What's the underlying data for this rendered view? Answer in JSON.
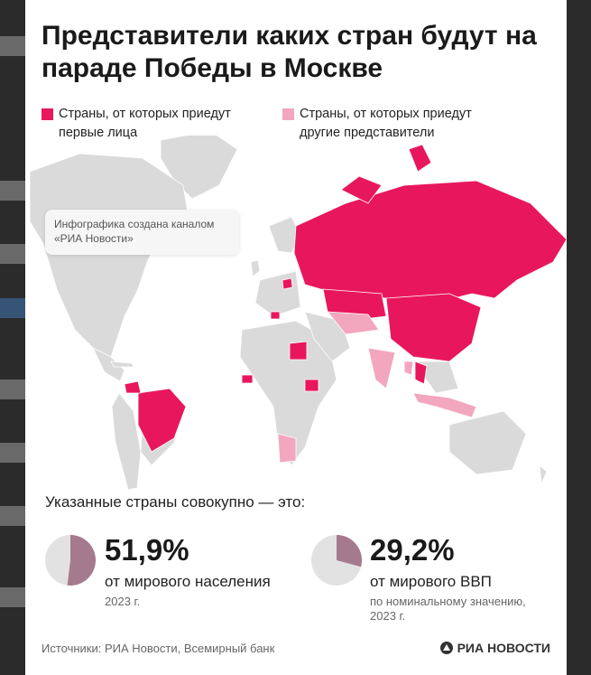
{
  "title": "Представители каких стран будут на параде Победы в Москве",
  "legend": [
    {
      "label": "Страны, от которых приедут первые лица",
      "color": "#e8175d"
    },
    {
      "label": "Страны, от которых приедут другие представители",
      "color": "#f2a7bf"
    }
  ],
  "note": "Инфографика создана каналом «РИА Новости»",
  "summary_intro": "Указанные страны совокупно — это:",
  "stats": [
    {
      "value": "51,9%",
      "fraction": 0.519,
      "label": "от мирового населения",
      "sub1": "2023 г.",
      "sub2": ""
    },
    {
      "value": "29,2%",
      "fraction": 0.292,
      "label": "от мирового ВВП",
      "sub1": "по номинальному значению,",
      "sub2": "2023 г."
    }
  ],
  "sources": "Источники: РИА Новости, Всемирный банк",
  "brand": "РИА НОВОСТИ",
  "colors": {
    "land": "#dadada",
    "highlight": "#e8175d",
    "secondary": "#f2a7bf",
    "pie_fill": "#a67a8e",
    "pie_bg": "#e2e2e2"
  }
}
